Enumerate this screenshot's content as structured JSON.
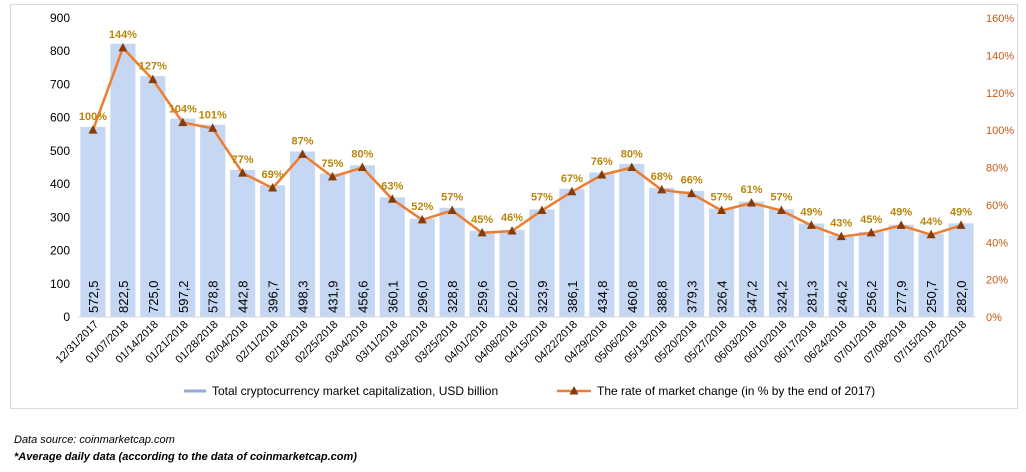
{
  "chart_data": {
    "type": "bar",
    "categories": [
      "12/31/2017",
      "01/07/2018",
      "01/14/2018",
      "01/21/2018",
      "01/28/2018",
      "02/04/2018",
      "02/11/2018",
      "02/18/2018",
      "02/25/2018",
      "03/04/2018",
      "03/11/2018",
      "03/18/2018",
      "03/25/2018",
      "04/01/2018",
      "04/08/2018",
      "04/15/2018",
      "04/22/2018",
      "04/29/2018",
      "05/06/2018",
      "05/13/2018",
      "05/20/2018",
      "05/27/2018",
      "06/03/2018",
      "06/10/2018",
      "06/17/2018",
      "06/24/2018",
      "07/01/2018",
      "07/08/2018",
      "07/15/2018",
      "07/22/2018"
    ],
    "bar_series": {
      "name": "Total cryptocurrency market capitalization, USD billion",
      "color": "#c5d7f2",
      "legend_color": "#8faadc",
      "values": [
        572.5,
        822.5,
        725.0,
        597.2,
        578.8,
        442.8,
        396.7,
        498.3,
        431.9,
        456.6,
        360.1,
        296.0,
        328.8,
        259.6,
        262.0,
        323.9,
        386.1,
        434.8,
        460.8,
        388.8,
        379.3,
        326.4,
        347.2,
        324.2,
        281.3,
        246.2,
        256.2,
        277.9,
        250.7,
        282.0
      ],
      "labels": [
        "572,5",
        "822,5",
        "725,0",
        "597,2",
        "578,8",
        "442,8",
        "396,7",
        "498,3",
        "431,9",
        "456,6",
        "360,1",
        "296,0",
        "328,8",
        "259,6",
        "262,0",
        "323,9",
        "386,1",
        "434,8",
        "460,8",
        "388,8",
        "379,3",
        "326,4",
        "347,2",
        "324,2",
        "281,3",
        "246,2",
        "256,2",
        "277,9",
        "250,7",
        "282,0"
      ]
    },
    "line_series": {
      "name": "The rate of market change (in % by the end of 2017)",
      "color": "#ed7d31",
      "marker_color": "#843c0c",
      "values": [
        100,
        144,
        127,
        104,
        101,
        77,
        69,
        87,
        75,
        80,
        63,
        52,
        57,
        45,
        46,
        57,
        67,
        76,
        80,
        68,
        66,
        57,
        61,
        57,
        49,
        43,
        45,
        49,
        44,
        49
      ],
      "labels": [
        "100%",
        "144%",
        "127%",
        "104%",
        "101%",
        "77%",
        "69%",
        "87%",
        "75%",
        "80%",
        "63%",
        "52%",
        "57%",
        "45%",
        "46%",
        "57%",
        "67%",
        "76%",
        "80%",
        "68%",
        "66%",
        "57%",
        "61%",
        "57%",
        "49%",
        "43%",
        "45%",
        "49%",
        "44%",
        "49%"
      ]
    },
    "line_label_color": "#b8860b",
    "y_left": {
      "min": 0,
      "max": 900,
      "step": 100,
      "ticks": [
        "0",
        "100",
        "200",
        "300",
        "400",
        "500",
        "600",
        "700",
        "800",
        "900"
      ]
    },
    "y_right": {
      "min": 0,
      "max": 160,
      "step": 20,
      "ticks": [
        "0%",
        "20%",
        "40%",
        "60%",
        "80%",
        "100%",
        "120%",
        "140%",
        "160%"
      ]
    },
    "right_axis_color": "#c55a11",
    "grid": false,
    "legend_position": "bottom"
  },
  "notes": {
    "source": "Data source: coinmarketcap.com",
    "avg": "*Average daily data (according to the data of coinmarketcap.com)"
  }
}
